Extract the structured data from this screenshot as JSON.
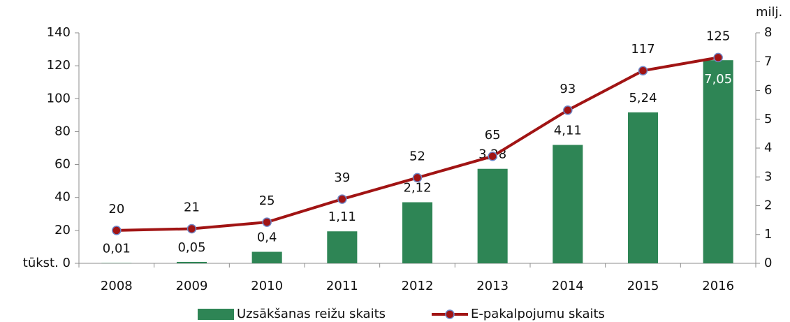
{
  "chart_data": {
    "type": "bar",
    "categories": [
      "2008",
      "2009",
      "2010",
      "2011",
      "2012",
      "2013",
      "2014",
      "2015",
      "2016"
    ],
    "ylim": [
      0,
      140
    ],
    "yticks": [
      {
        "value": 0,
        "label": "tūkst. 0"
      },
      20,
      40,
      60,
      80,
      100,
      120,
      140
    ],
    "y2lim": [
      0,
      8
    ],
    "y2ticks": [
      0,
      1,
      2,
      3,
      4,
      5,
      6,
      7,
      8
    ],
    "y2label": "milj.",
    "grid": false,
    "legend": "bottom",
    "series": [
      {
        "name": "Uzsākšanas reižu skaits",
        "type": "bar",
        "axis": "y2",
        "color": "#2e8555",
        "values": [
          0.01,
          0.05,
          0.4,
          1.11,
          2.12,
          3.28,
          4.11,
          5.24,
          7.05
        ],
        "value_labels": [
          "0,01",
          "0,05",
          "0,4",
          "1,11",
          "2,12",
          "3,28",
          "4,11",
          "5,24",
          "7,05"
        ]
      },
      {
        "name": "E-pakalpojumu skaits",
        "type": "line",
        "color": "#a11414",
        "marker_edge": "#6f86c6",
        "values": [
          20,
          21,
          25,
          39,
          52,
          65,
          93,
          117,
          125
        ]
      }
    ]
  }
}
